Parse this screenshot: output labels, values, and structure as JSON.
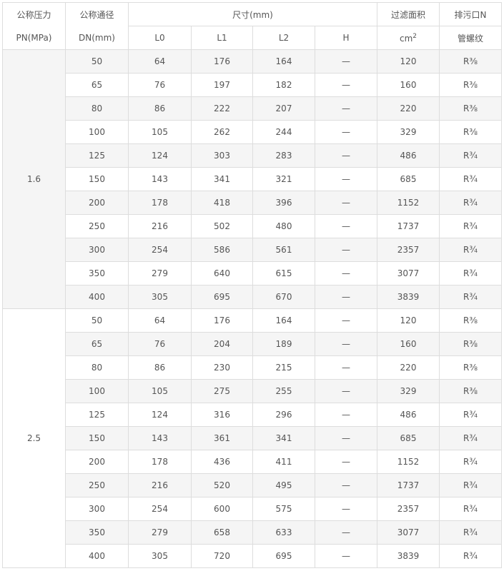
{
  "header": {
    "pressure": [
      "公称压力",
      "PN(MPa)"
    ],
    "dn": [
      "公称通径",
      "DN(mm)"
    ],
    "size": "尺寸(mm)",
    "sub": [
      "L0",
      "L1",
      "L2",
      "H"
    ],
    "area": [
      "过滤面积",
      "cm",
      "2"
    ],
    "drain": [
      "排污口N",
      "管螺纹"
    ]
  },
  "groups": [
    {
      "pn": "1.6",
      "rows": [
        [
          50,
          64,
          176,
          164,
          "—",
          120,
          "R⅜"
        ],
        [
          65,
          76,
          197,
          182,
          "—",
          160,
          "R⅜"
        ],
        [
          80,
          86,
          222,
          207,
          "—",
          220,
          "R⅜"
        ],
        [
          100,
          105,
          262,
          244,
          "—",
          329,
          "R⅜"
        ],
        [
          125,
          124,
          303,
          283,
          "—",
          486,
          "R¾"
        ],
        [
          150,
          143,
          341,
          321,
          "—",
          685,
          "R¾"
        ],
        [
          200,
          178,
          418,
          396,
          "—",
          1152,
          "R¾"
        ],
        [
          250,
          216,
          502,
          480,
          "—",
          1737,
          "R¾"
        ],
        [
          300,
          254,
          586,
          561,
          "—",
          2357,
          "R¾"
        ],
        [
          350,
          279,
          640,
          615,
          "—",
          3077,
          "R¾"
        ],
        [
          400,
          305,
          695,
          670,
          "—",
          3839,
          "R¾"
        ]
      ]
    },
    {
      "pn": "2.5",
      "rows": [
        [
          50,
          64,
          176,
          164,
          "—",
          120,
          "R⅜"
        ],
        [
          65,
          76,
          204,
          189,
          "—",
          160,
          "R⅜"
        ],
        [
          80,
          86,
          230,
          215,
          "—",
          220,
          "R⅜"
        ],
        [
          100,
          105,
          275,
          255,
          "—",
          329,
          "R⅜"
        ],
        [
          125,
          124,
          316,
          296,
          "—",
          486,
          "R¾"
        ],
        [
          150,
          143,
          361,
          341,
          "—",
          685,
          "R¾"
        ],
        [
          200,
          178,
          436,
          411,
          "—",
          1152,
          "R¾"
        ],
        [
          250,
          216,
          520,
          495,
          "—",
          1737,
          "R¾"
        ],
        [
          300,
          254,
          600,
          575,
          "—",
          2357,
          "R¾"
        ],
        [
          350,
          279,
          658,
          633,
          "—",
          3077,
          "R¾"
        ],
        [
          400,
          305,
          720,
          695,
          "—",
          3839,
          "R¾"
        ]
      ]
    }
  ]
}
